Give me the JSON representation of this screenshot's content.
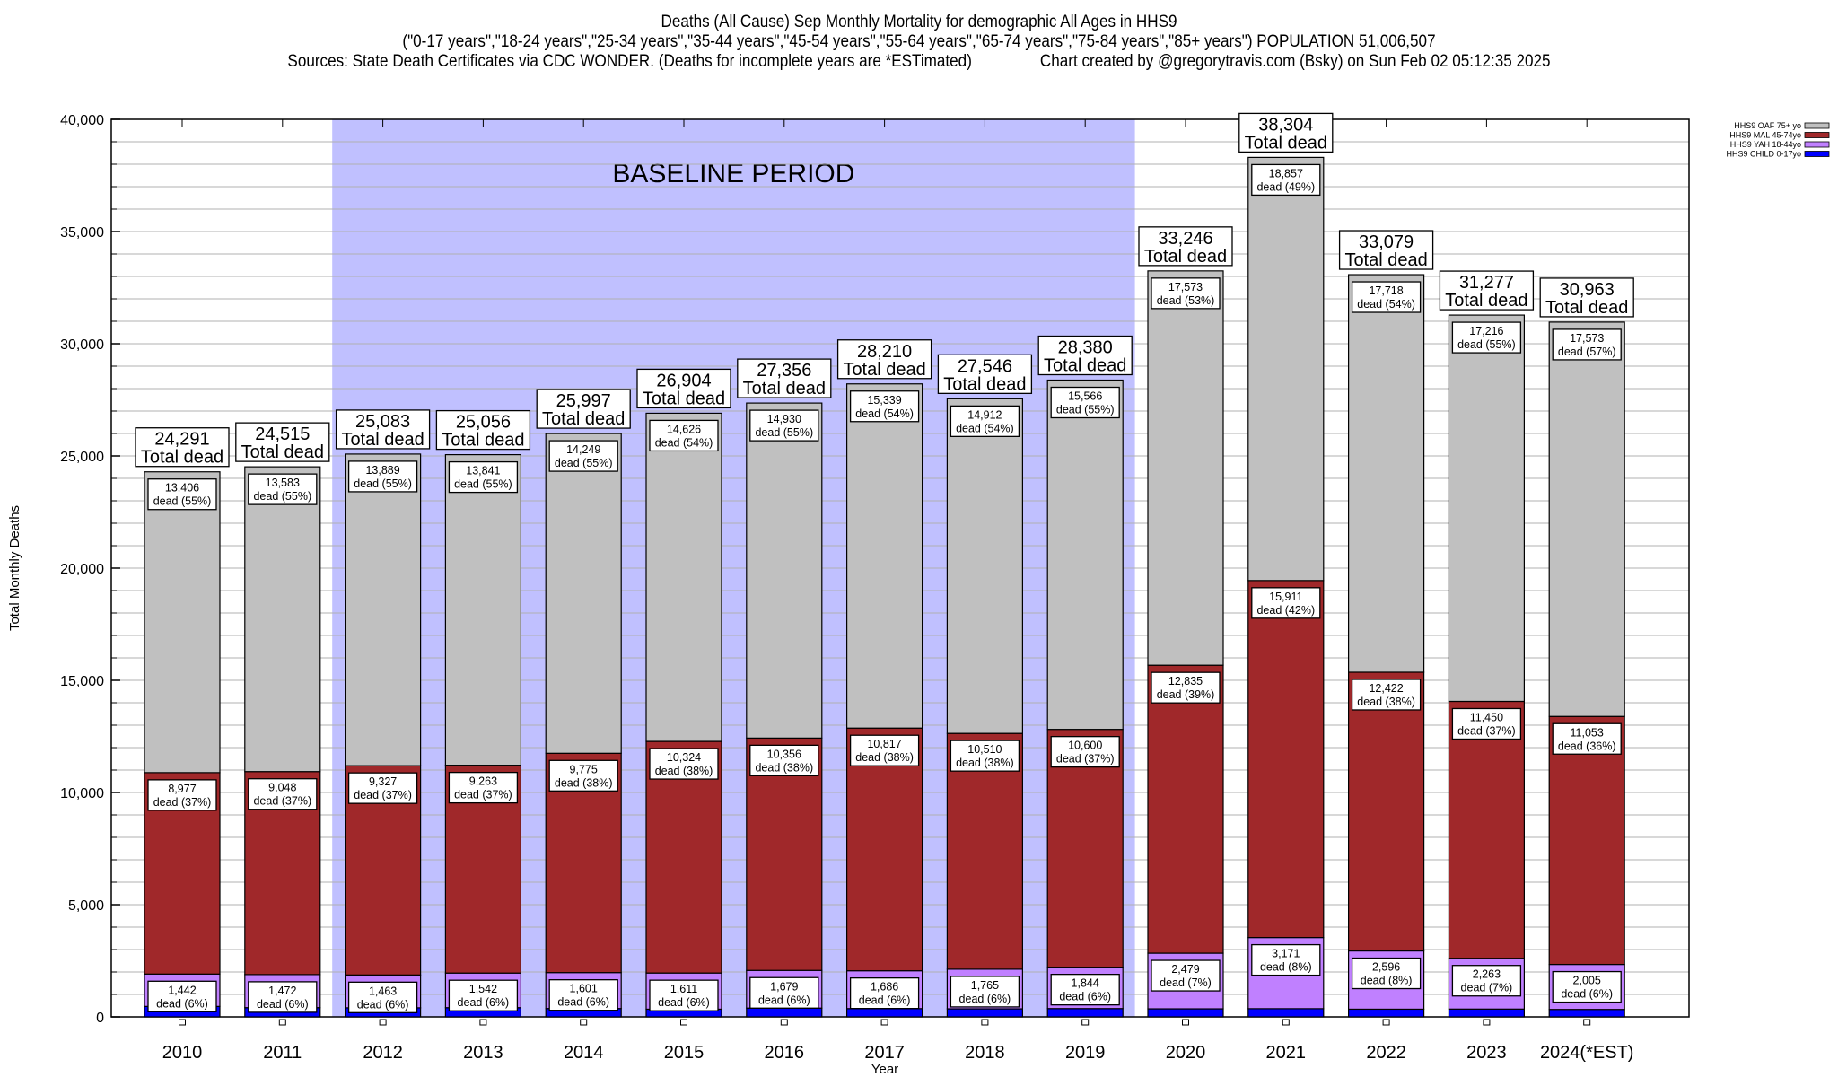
{
  "header": {
    "title": "Deaths (All Cause) Sep Monthly Mortality for demographic All Ages in HHS9",
    "subtitle": "(\"0-17 years\",\"18-24 years\",\"25-34 years\",\"35-44 years\",\"45-54 years\",\"55-64 years\",\"65-74 years\",\"75-84 years\",\"85+ years\") POPULATION 51,006,507",
    "sources": "Sources: State Death Certificates via CDC WONDER. (Deaths for incomplete years are *ESTimated)",
    "credit": "Chart created by @gregorytravis.com (Bsky) on Sun Feb 02 05:12:35 2025"
  },
  "chart_data": {
    "type": "bar",
    "stacked": true,
    "title": "Deaths (All Cause) Sep Monthly Mortality for demographic All Ages in HHS9",
    "xlabel": "Year",
    "ylabel": "Total Monthly Deaths",
    "ylim": [
      0,
      40000
    ],
    "yticks": [
      0,
      5000,
      10000,
      15000,
      20000,
      25000,
      30000,
      35000,
      40000
    ],
    "ytick_labels": [
      "0",
      "5,000",
      "10,000",
      "15,000",
      "20,000",
      "25,000",
      "30,000",
      "35,000",
      "40,000"
    ],
    "minor_gridlines_step": 1000,
    "grid": true,
    "legend_position": "top-right",
    "categories": [
      "2010",
      "2011",
      "2012",
      "2013",
      "2014",
      "2015",
      "2016",
      "2017",
      "2018",
      "2019",
      "2020",
      "2021",
      "2022",
      "2023",
      "2024(*EST)"
    ],
    "series": [
      {
        "name": "HHS9 CHILD 0-17yo",
        "color": "#0000ff",
        "values": [
          466,
          412,
          404,
          410,
          372,
          343,
          391,
          368,
          359,
          370,
          359,
          365,
          343,
          348,
          332
        ]
      },
      {
        "name": "HHS9 YAH 18-44yo",
        "color": "#c080ff",
        "values": [
          1442,
          1472,
          1463,
          1542,
          1601,
          1611,
          1679,
          1686,
          1765,
          1844,
          2479,
          3171,
          2596,
          2263,
          2005
        ],
        "pct_labels": [
          "6%",
          "6%",
          "6%",
          "6%",
          "6%",
          "6%",
          "6%",
          "6%",
          "6%",
          "6%",
          "7%",
          "8%",
          "8%",
          "7%",
          "6%"
        ]
      },
      {
        "name": "HHS9 MAL 45-74yo",
        "color": "#a0282a",
        "values": [
          8977,
          9048,
          9327,
          9263,
          9775,
          10324,
          10356,
          10817,
          10510,
          10600,
          12835,
          15911,
          12422,
          11450,
          11053
        ],
        "pct_labels": [
          "37%",
          "37%",
          "37%",
          "37%",
          "38%",
          "38%",
          "38%",
          "38%",
          "38%",
          "37%",
          "39%",
          "42%",
          "38%",
          "37%",
          "36%"
        ]
      },
      {
        "name": "HHS9 OAF 75+ yo",
        "color": "#c0c0c0",
        "values": [
          13406,
          13583,
          13889,
          13841,
          14249,
          14626,
          14930,
          15339,
          14912,
          15566,
          17573,
          18857,
          17718,
          17216,
          17573
        ],
        "pct_labels": [
          "55%",
          "55%",
          "55%",
          "55%",
          "55%",
          "54%",
          "55%",
          "54%",
          "54%",
          "55%",
          "53%",
          "49%",
          "54%",
          "55%",
          "57%"
        ]
      }
    ],
    "totals": [
      24291,
      24515,
      25083,
      25056,
      25997,
      26904,
      27356,
      28210,
      27546,
      28380,
      33246,
      38304,
      33079,
      31277,
      30963
    ],
    "total_suffix": "Total dead",
    "segment_suffix": "dead",
    "annotations": [
      {
        "text": "BASELINE PERIOD",
        "span": [
          "2012",
          "2019"
        ],
        "shade_color": "#c0c0ff"
      }
    ]
  }
}
